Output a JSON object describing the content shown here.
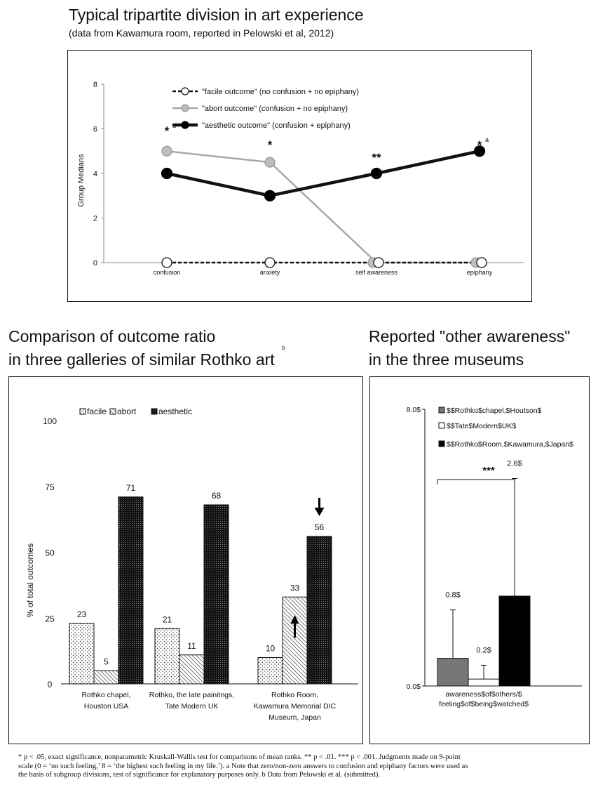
{
  "top_title": "Typical tripartite division in art experience",
  "top_subtitle": "(data from Kawamura room, reported in Pelowski et al, 2012)",
  "left_title_line1": "Comparison of outcome ratio",
  "left_title_line2": "in three galleries of similar Rothko art",
  "left_title_marker": "b",
  "right_title_line1": "Reported \"other awareness\"",
  "right_title_line2": "in the three museums",
  "footnote_lines": [
    "*  p < .05, exact significance, nonparametric Kruskall-Wallis test for comparisons of mean ranks. ** p < .01. *** p < .001. Judgments made on 9-point",
    "scale (0 = ‘no such feeling,’ 8 = ‘the highest such feeling in my life.’). a Note that zero/non-zero answers to confusion and epiphany factors were used as",
    "the basis of subgroup divisions, test of significance for explanatory purposes only. b Data from Pelowski et al. (submitted)."
  ],
  "chart_data": [
    {
      "type": "line",
      "ylabel": "Group Medians",
      "ylim": [
        0,
        8
      ],
      "yticks": [
        "0",
        "2",
        "4",
        "6",
        "8"
      ],
      "categories": [
        "confusion",
        "anxiety",
        "self awareness",
        "epiphany"
      ],
      "series": [
        {
          "name": "\"facile outcome\" (no confusion + no epiphany)",
          "values": [
            0,
            0,
            0,
            0
          ],
          "color": "#111111",
          "style": "dashed"
        },
        {
          "name": "\"abort outcome\" (confusion + no epiphany)",
          "values": [
            5,
            4.5,
            0,
            0
          ],
          "color": "#a8a8a8",
          "style": "solid"
        },
        {
          "name": "\"aesthetic outcome\" (confusion + epiphany)",
          "values": [
            4,
            3,
            4,
            5
          ],
          "color": "#111111",
          "style": "bold"
        }
      ],
      "significance": [
        "*",
        "*",
        "**",
        "*"
      ],
      "significance_superscripts": [
        "a",
        "",
        "",
        "a"
      ]
    },
    {
      "type": "bar",
      "ylabel": "% of total outcomes",
      "ylim": [
        0,
        100
      ],
      "yticks": [
        "0",
        "25",
        "50",
        "75",
        "100"
      ],
      "categories": [
        [
          "Rothko chapel,",
          "Houston USA"
        ],
        [
          "Rothko, the late painitngs,",
          "Tate Modern UK"
        ],
        [
          "Rothko Room,",
          "Kawamura Memorial DIC",
          "Museum, Japan"
        ]
      ],
      "series": [
        {
          "name": "facile",
          "values": [
            23,
            21,
            10
          ],
          "pattern": "dots"
        },
        {
          "name": "abort",
          "values": [
            5,
            11,
            33
          ],
          "pattern": "hatch"
        },
        {
          "name": "aesthetic",
          "values": [
            71,
            68,
            56
          ],
          "pattern": "dense"
        }
      ],
      "arrows": [
        "up on abort, Rothko Room",
        "down on aesthetic, Rothko Room"
      ]
    },
    {
      "type": "bar",
      "ylim": [
        0,
        8
      ],
      "yticks": [
        "0.0$",
        "8.0$"
      ],
      "categories": [
        [
          "awareness$of$others/$",
          "feeling$of$being$watched$"
        ]
      ],
      "series": [
        {
          "name": "$$Rothko$chapel,$Houtson$",
          "values": [
            0.8
          ],
          "label": "0.8$",
          "error_top": 2.2,
          "color": "#777777"
        },
        {
          "name": "$$Tate$Modern$UK$",
          "values": [
            0.2
          ],
          "label": "0.2$",
          "error_top": 0.6,
          "color": "#ffffff"
        },
        {
          "name": "$$Rothko$Room,$Kawamura,$Japan$",
          "values": [
            2.6
          ],
          "label": "2.6$",
          "error_top": 6.0,
          "color": "#000000"
        }
      ],
      "significance": "***"
    }
  ]
}
